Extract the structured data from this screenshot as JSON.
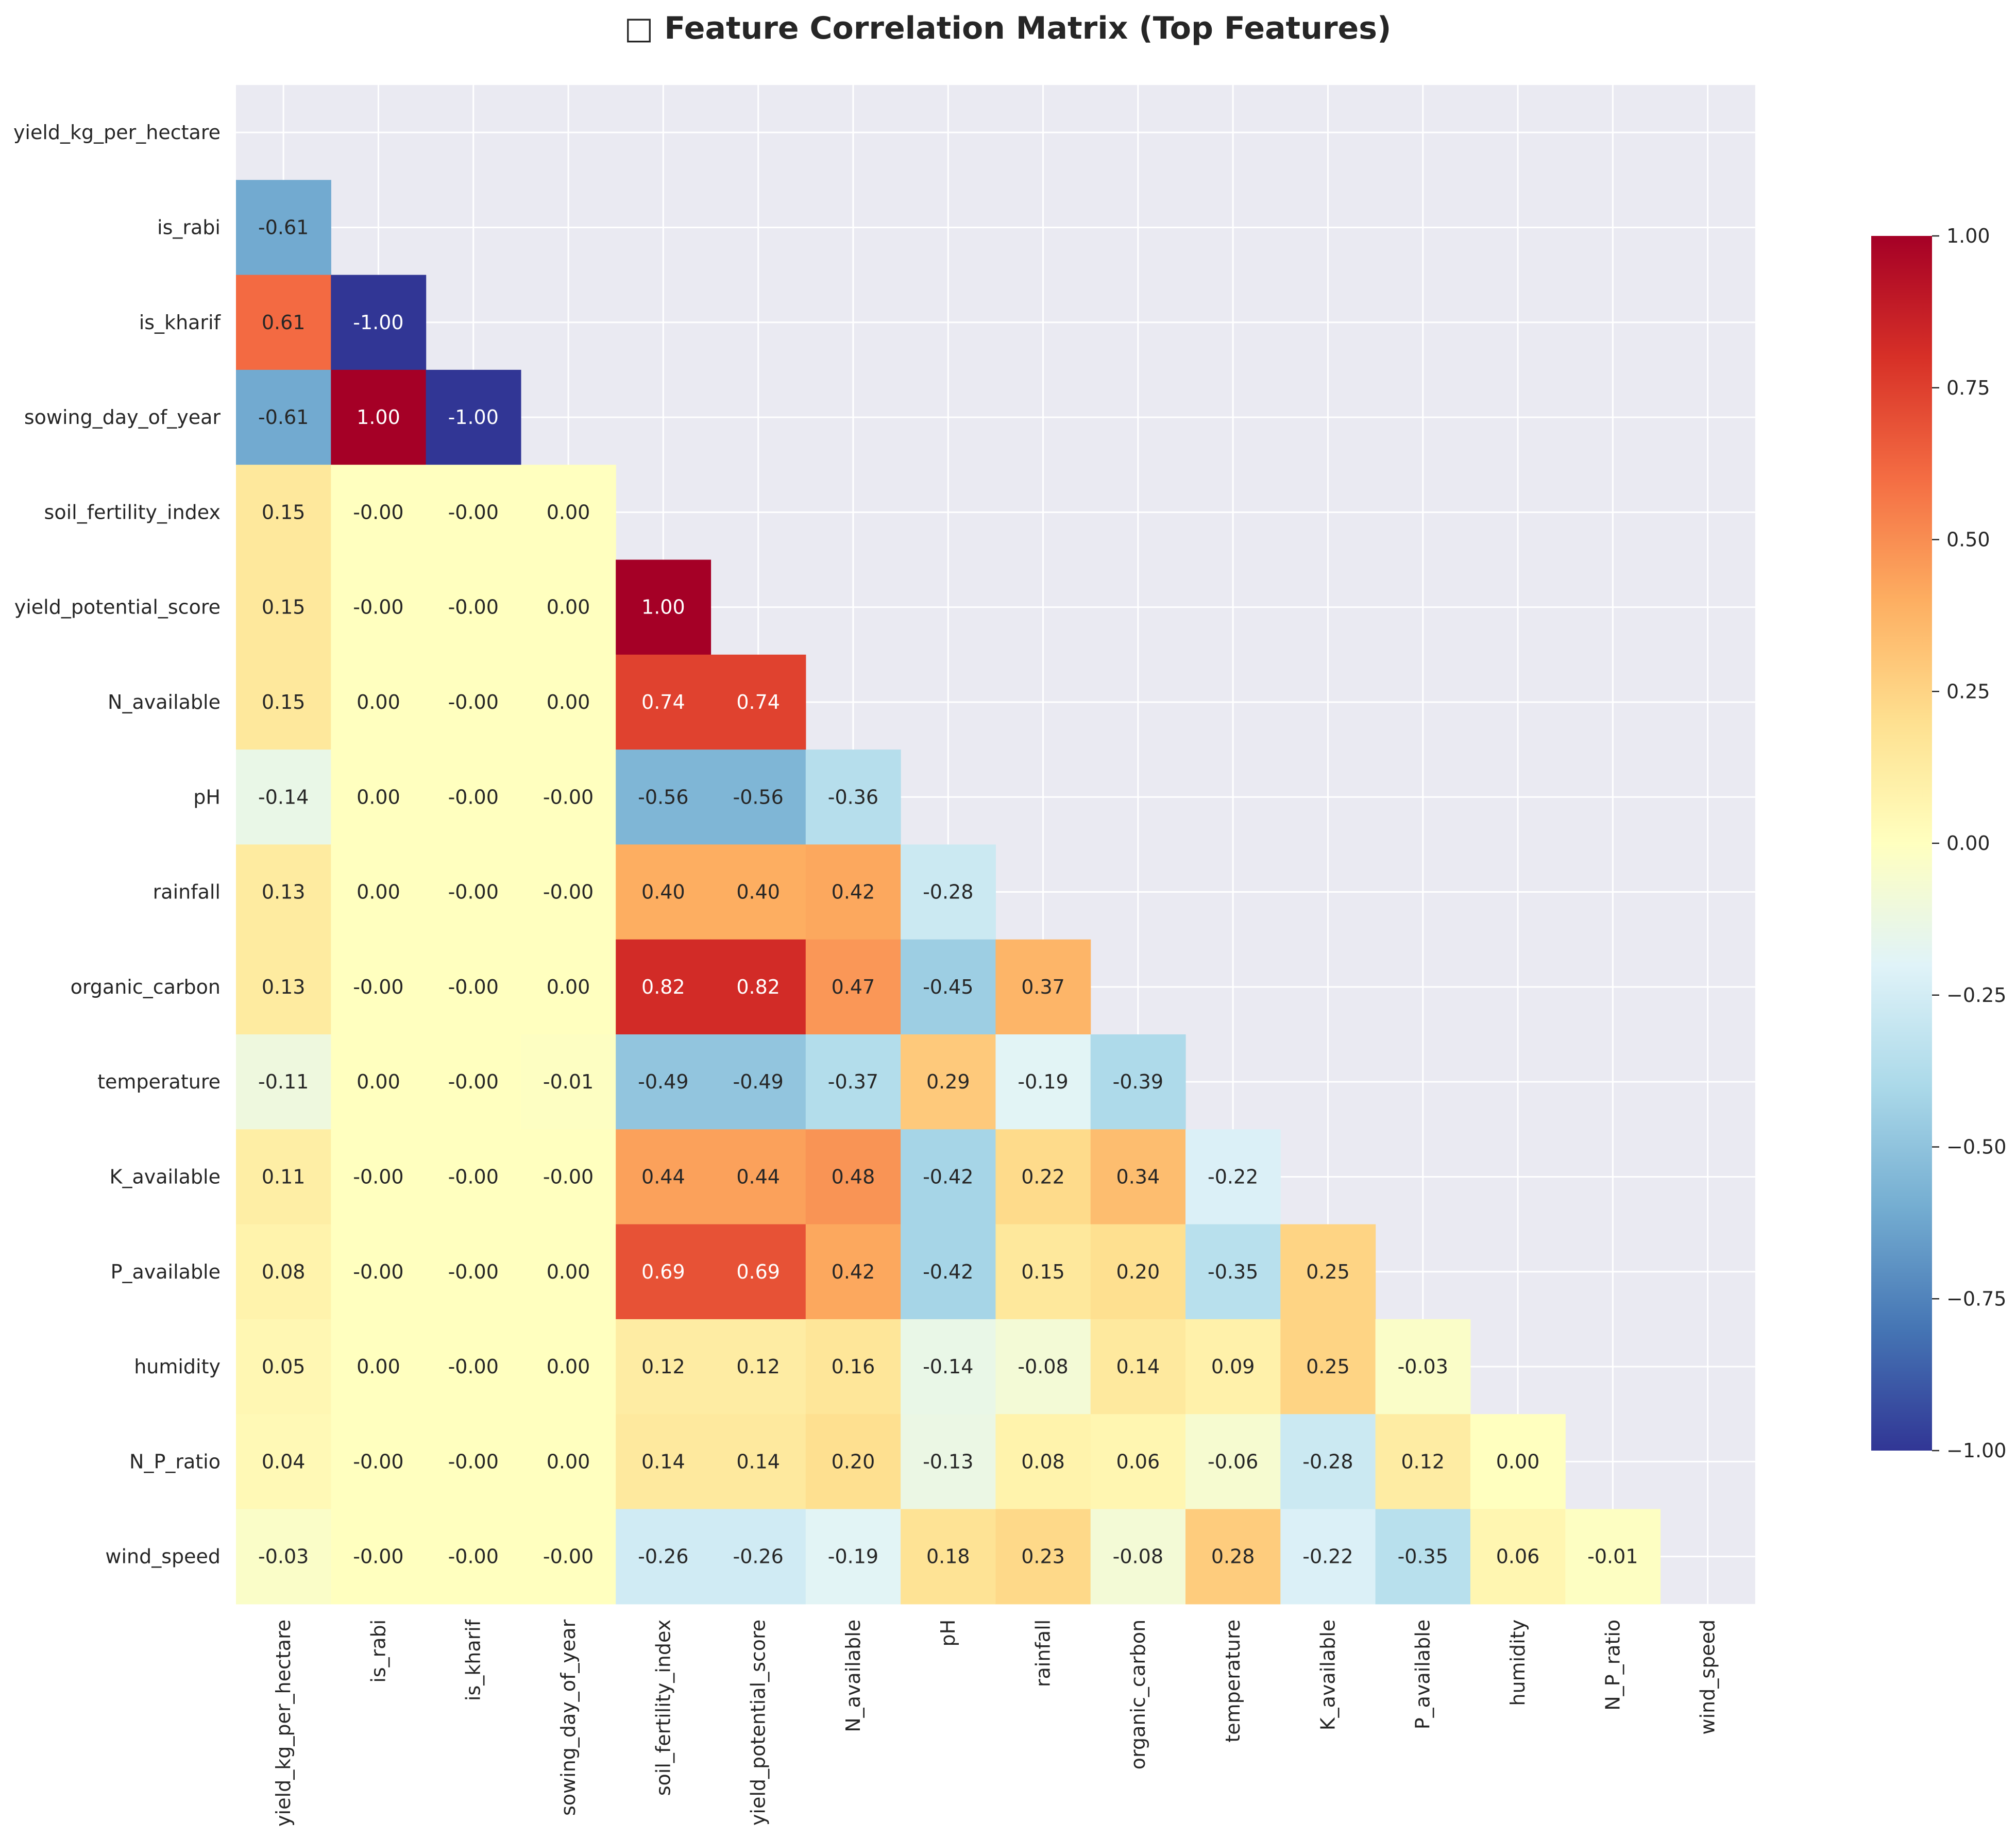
{
  "chart_data": {
    "type": "heatmap",
    "title": "□ Feature Correlation Matrix (Top Features)",
    "mask": "upper-triangle-including-diagonal",
    "features": [
      "yield_kg_per_hectare",
      "is_rabi",
      "is_kharif",
      "sowing_day_of_year",
      "soil_fertility_index",
      "yield_potential_score",
      "N_available",
      "pH",
      "rainfall",
      "organic_carbon",
      "temperature",
      "K_available",
      "P_available",
      "humidity",
      "N_P_ratio",
      "wind_speed"
    ],
    "cell_labels": [
      [],
      [
        "-0.61"
      ],
      [
        "0.61",
        "-1.00"
      ],
      [
        "-0.61",
        "1.00",
        "-1.00"
      ],
      [
        "0.15",
        "-0.00",
        "-0.00",
        "0.00"
      ],
      [
        "0.15",
        "-0.00",
        "-0.00",
        "0.00",
        "1.00"
      ],
      [
        "0.15",
        "0.00",
        "-0.00",
        "0.00",
        "0.74",
        "0.74"
      ],
      [
        "-0.14",
        "0.00",
        "-0.00",
        "-0.00",
        "-0.56",
        "-0.56",
        "-0.36"
      ],
      [
        "0.13",
        "0.00",
        "-0.00",
        "-0.00",
        "0.40",
        "0.40",
        "0.42",
        "-0.28"
      ],
      [
        "0.13",
        "-0.00",
        "-0.00",
        "0.00",
        "0.82",
        "0.82",
        "0.47",
        "-0.45",
        "0.37"
      ],
      [
        "-0.11",
        "0.00",
        "-0.00",
        "-0.01",
        "-0.49",
        "-0.49",
        "-0.37",
        "0.29",
        "-0.19",
        "-0.39"
      ],
      [
        "0.11",
        "-0.00",
        "-0.00",
        "-0.00",
        "0.44",
        "0.44",
        "0.48",
        "-0.42",
        "0.22",
        "0.34",
        "-0.22"
      ],
      [
        "0.08",
        "-0.00",
        "-0.00",
        "0.00",
        "0.69",
        "0.69",
        "0.42",
        "-0.42",
        "0.15",
        "0.20",
        "-0.35",
        "0.25"
      ],
      [
        "0.05",
        "0.00",
        "-0.00",
        "0.00",
        "0.12",
        "0.12",
        "0.16",
        "-0.14",
        "-0.08",
        "0.14",
        "0.09",
        "0.25",
        "-0.03"
      ],
      [
        "0.04",
        "-0.00",
        "-0.00",
        "0.00",
        "0.14",
        "0.14",
        "0.20",
        "-0.13",
        "0.08",
        "0.06",
        "-0.06",
        "-0.28",
        "0.12",
        "0.00"
      ],
      [
        "-0.03",
        "-0.00",
        "-0.00",
        "-0.00",
        "-0.26",
        "-0.26",
        "-0.19",
        "0.18",
        "0.23",
        "-0.08",
        "0.28",
        "-0.22",
        "-0.35",
        "0.06",
        "-0.01"
      ]
    ],
    "colorbar": {
      "colormap": "RdYlBu_r",
      "range": [
        -1,
        1
      ],
      "ticks": [
        "1.00",
        "0.75",
        "0.50",
        "0.25",
        "0.00",
        "−0.25",
        "−0.50",
        "−0.75",
        "−1.00"
      ]
    },
    "grid": true
  }
}
